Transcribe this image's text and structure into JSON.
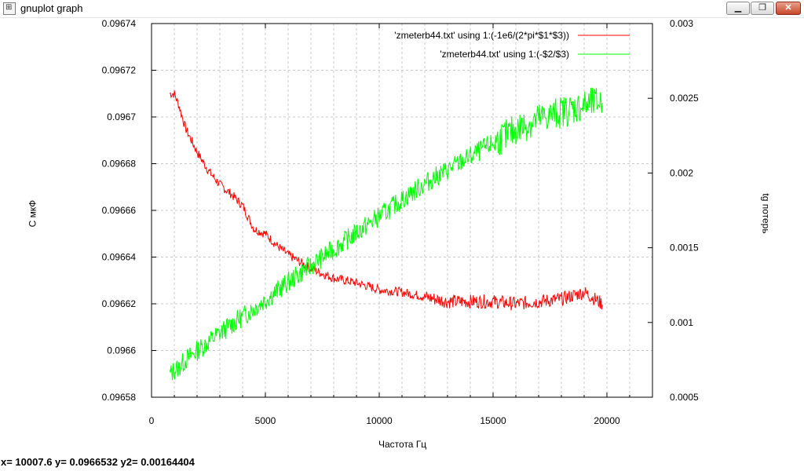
{
  "window": {
    "title": "gnuplot graph",
    "icon": "gnuplot-graph-icon",
    "controls": {
      "minimize_icon": "minimize-icon",
      "maximize_icon": "restore-icon",
      "close_icon": "close-icon"
    }
  },
  "status": {
    "text": "x= 10007.6 y= 0.0966532 y2= 0.00164404"
  },
  "chart_data": {
    "type": "line",
    "title": "",
    "xlabel": "Частота Гц",
    "ylabel": "С мкФ",
    "y2label": "tg потерь",
    "xlim": [
      0,
      22000
    ],
    "ylim": [
      0.09658,
      0.09674
    ],
    "y2lim": [
      0.0005,
      0.003
    ],
    "x_ticks": [
      "0",
      "5000",
      "10000",
      "15000",
      "20000"
    ],
    "y_ticks": [
      "0.09674",
      "0.09672",
      "0.0967",
      "0.09668",
      "0.09666",
      "0.09664",
      "0.09662",
      "0.0966",
      "0.09658"
    ],
    "y2_ticks": [
      "0.003",
      "0.0025",
      "0.002",
      "0.0015",
      "0.001",
      "0.0005"
    ],
    "grid": true,
    "legend_position": "top-right",
    "colors": {
      "series1": "#ff0000",
      "series2": "#00ff00"
    },
    "series": [
      {
        "name": "'zmeterb44.txt' using 1:(-1e6/(2*pi*$1*$3))",
        "axis": "y",
        "x": [
          800,
          1000,
          1200,
          1500,
          2000,
          2500,
          3000,
          3500,
          4000,
          4500,
          5000,
          5500,
          6000,
          6500,
          7000,
          8000,
          9000,
          10000,
          11000,
          12000,
          13000,
          14000,
          15000,
          16000,
          17000,
          18000,
          19000,
          19800
        ],
        "y": [
          0.09671,
          0.09671,
          0.096705,
          0.096695,
          0.096685,
          0.096677,
          0.096671,
          0.096667,
          0.096662,
          0.096652,
          0.09665,
          0.096645,
          0.096641,
          0.096638,
          0.096635,
          0.096631,
          0.096629,
          0.096626,
          0.096625,
          0.096623,
          0.096621,
          0.096621,
          0.096621,
          0.09662,
          0.096621,
          0.096622,
          0.096625,
          0.09662
        ]
      },
      {
        "name": "'zmeterb44.txt' using 1:(-$2/$3)",
        "axis": "y2",
        "x": [
          800,
          1000,
          1200,
          1500,
          2000,
          2500,
          3000,
          4000,
          5000,
          6000,
          7000,
          8000,
          9000,
          10000,
          11000,
          12000,
          13000,
          14000,
          15000,
          16000,
          17000,
          18000,
          19000,
          19800
        ],
        "y": [
          0.00065,
          0.00068,
          0.0007,
          0.00075,
          0.00081,
          0.00087,
          0.00093,
          0.00104,
          0.00115,
          0.00127,
          0.00138,
          0.00149,
          0.0016,
          0.00171,
          0.00182,
          0.00193,
          0.00202,
          0.00211,
          0.0022,
          0.00229,
          0.00236,
          0.00241,
          0.00245,
          0.00248
        ]
      }
    ]
  }
}
